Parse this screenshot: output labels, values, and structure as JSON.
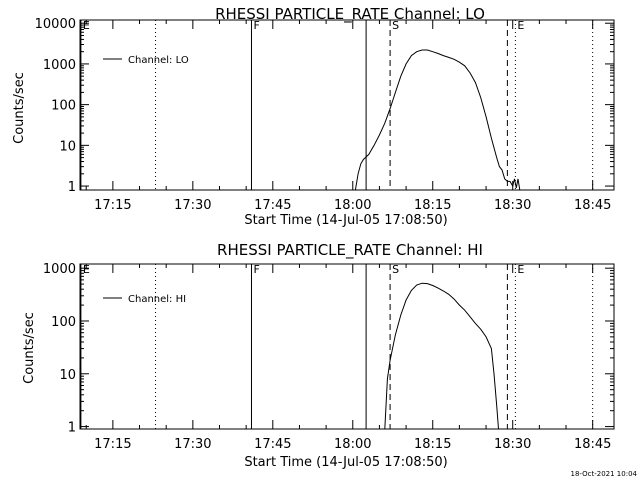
{
  "stamp": "18-Oct-2021 10:04",
  "chart_data": [
    {
      "type": "line",
      "title": "RHESSI PARTICLE_RATE Channel: LO",
      "xlabel": "Start Time (14-Jul-05 17:08:50)",
      "ylabel": "Counts/sec",
      "yscale": "log",
      "xlim": [
        "17:08:50",
        "18:49:00"
      ],
      "ylim": [
        0.8,
        12000
      ],
      "x_ticks": [
        "17:15",
        "17:30",
        "17:45",
        "18:00",
        "18:15",
        "18:30",
        "18:45"
      ],
      "y_ticks": [
        "1",
        "10",
        "100",
        "1000",
        "10000"
      ],
      "legend": {
        "label": "Channel: LO",
        "position": "top-left"
      },
      "markers": [
        {
          "label": "E",
          "time": "17:09:00",
          "style": "solid"
        },
        {
          "label": "",
          "time": "17:23:00",
          "style": "dotted"
        },
        {
          "label": "F",
          "time": "17:41:00",
          "style": "solid"
        },
        {
          "label": "",
          "time": "18:02:30",
          "style": "solid"
        },
        {
          "label": "S",
          "time": "18:07:00",
          "style": "dashed"
        },
        {
          "label": "",
          "time": "18:29:00",
          "style": "dashed"
        },
        {
          "label": "E",
          "time": "18:30:30",
          "style": "dotted"
        },
        {
          "label": "",
          "time": "18:45:00",
          "style": "dotted"
        }
      ],
      "series": [
        {
          "name": "Channel: LO",
          "points": [
            [
              "18:00:30",
              0.8
            ],
            [
              "18:01:00",
              2.0
            ],
            [
              "18:01:30",
              3.5
            ],
            [
              "18:02:00",
              4.5
            ],
            [
              "18:03:00",
              6
            ],
            [
              "18:04:00",
              10
            ],
            [
              "18:05:00",
              18
            ],
            [
              "18:06:00",
              35
            ],
            [
              "18:07:00",
              80
            ],
            [
              "18:08:00",
              200
            ],
            [
              "18:09:00",
              500
            ],
            [
              "18:10:00",
              1000
            ],
            [
              "18:11:00",
              1600
            ],
            [
              "18:12:00",
              2000
            ],
            [
              "18:13:00",
              2200
            ],
            [
              "18:14:00",
              2200
            ],
            [
              "18:15:00",
              2000
            ],
            [
              "18:16:00",
              1800
            ],
            [
              "18:17:00",
              1600
            ],
            [
              "18:18:00",
              1450
            ],
            [
              "18:19:00",
              1300
            ],
            [
              "18:20:00",
              1100
            ],
            [
              "18:21:00",
              900
            ],
            [
              "18:22:00",
              600
            ],
            [
              "18:23:00",
              350
            ],
            [
              "18:24:00",
              150
            ],
            [
              "18:25:00",
              50
            ],
            [
              "18:26:00",
              15
            ],
            [
              "18:27:00",
              5
            ],
            [
              "18:27:30",
              3
            ],
            [
              "18:28:00",
              2.5
            ],
            [
              "18:28:30",
              1.5
            ],
            [
              "18:29:00",
              1.3
            ],
            [
              "18:29:30",
              1.3
            ],
            [
              "18:30:00",
              1.0
            ],
            [
              "18:30:20",
              1.5
            ],
            [
              "18:30:40",
              0.9
            ],
            [
              "18:31:00",
              1.5
            ],
            [
              "18:31:20",
              0.8
            ]
          ]
        }
      ]
    },
    {
      "type": "line",
      "title": "RHESSI PARTICLE_RATE Channel: HI",
      "xlabel": "Start Time (14-Jul-05 17:08:50)",
      "ylabel": "Counts/sec",
      "yscale": "log",
      "xlim": [
        "17:08:50",
        "18:49:00"
      ],
      "ylim": [
        0.9,
        1200
      ],
      "x_ticks": [
        "17:15",
        "17:30",
        "17:45",
        "18:00",
        "18:15",
        "18:30",
        "18:45"
      ],
      "y_ticks": [
        "1",
        "10",
        "100",
        "1000"
      ],
      "legend": {
        "label": "Channel: HI",
        "position": "top-left"
      },
      "markers": [
        {
          "label": "E",
          "time": "17:09:00",
          "style": "solid"
        },
        {
          "label": "",
          "time": "17:23:00",
          "style": "dotted"
        },
        {
          "label": "F",
          "time": "17:41:00",
          "style": "solid"
        },
        {
          "label": "",
          "time": "18:02:30",
          "style": "solid"
        },
        {
          "label": "S",
          "time": "18:07:00",
          "style": "dashed"
        },
        {
          "label": "",
          "time": "18:29:00",
          "style": "dashed"
        },
        {
          "label": "E",
          "time": "18:30:30",
          "style": "dotted"
        },
        {
          "label": "",
          "time": "18:45:00",
          "style": "dotted"
        }
      ],
      "series": [
        {
          "name": "Channel: HI",
          "points": [
            [
              "18:06:00",
              0.9
            ],
            [
              "18:06:30",
              8
            ],
            [
              "18:07:00",
              18
            ],
            [
              "18:08:00",
              55
            ],
            [
              "18:09:00",
              130
            ],
            [
              "18:10:00",
              250
            ],
            [
              "18:11:00",
              380
            ],
            [
              "18:12:00",
              480
            ],
            [
              "18:13:00",
              520
            ],
            [
              "18:14:00",
              510
            ],
            [
              "18:15:00",
              470
            ],
            [
              "18:16:00",
              420
            ],
            [
              "18:17:00",
              370
            ],
            [
              "18:18:00",
              320
            ],
            [
              "18:19:00",
              260
            ],
            [
              "18:20:00",
              200
            ],
            [
              "18:21:00",
              160
            ],
            [
              "18:22:00",
              120
            ],
            [
              "18:23:00",
              90
            ],
            [
              "18:24:00",
              70
            ],
            [
              "18:25:00",
              50
            ],
            [
              "18:26:00",
              30
            ],
            [
              "18:26:30",
              10
            ],
            [
              "18:27:00",
              2.5
            ],
            [
              "18:27:20",
              0.9
            ]
          ]
        }
      ]
    }
  ]
}
